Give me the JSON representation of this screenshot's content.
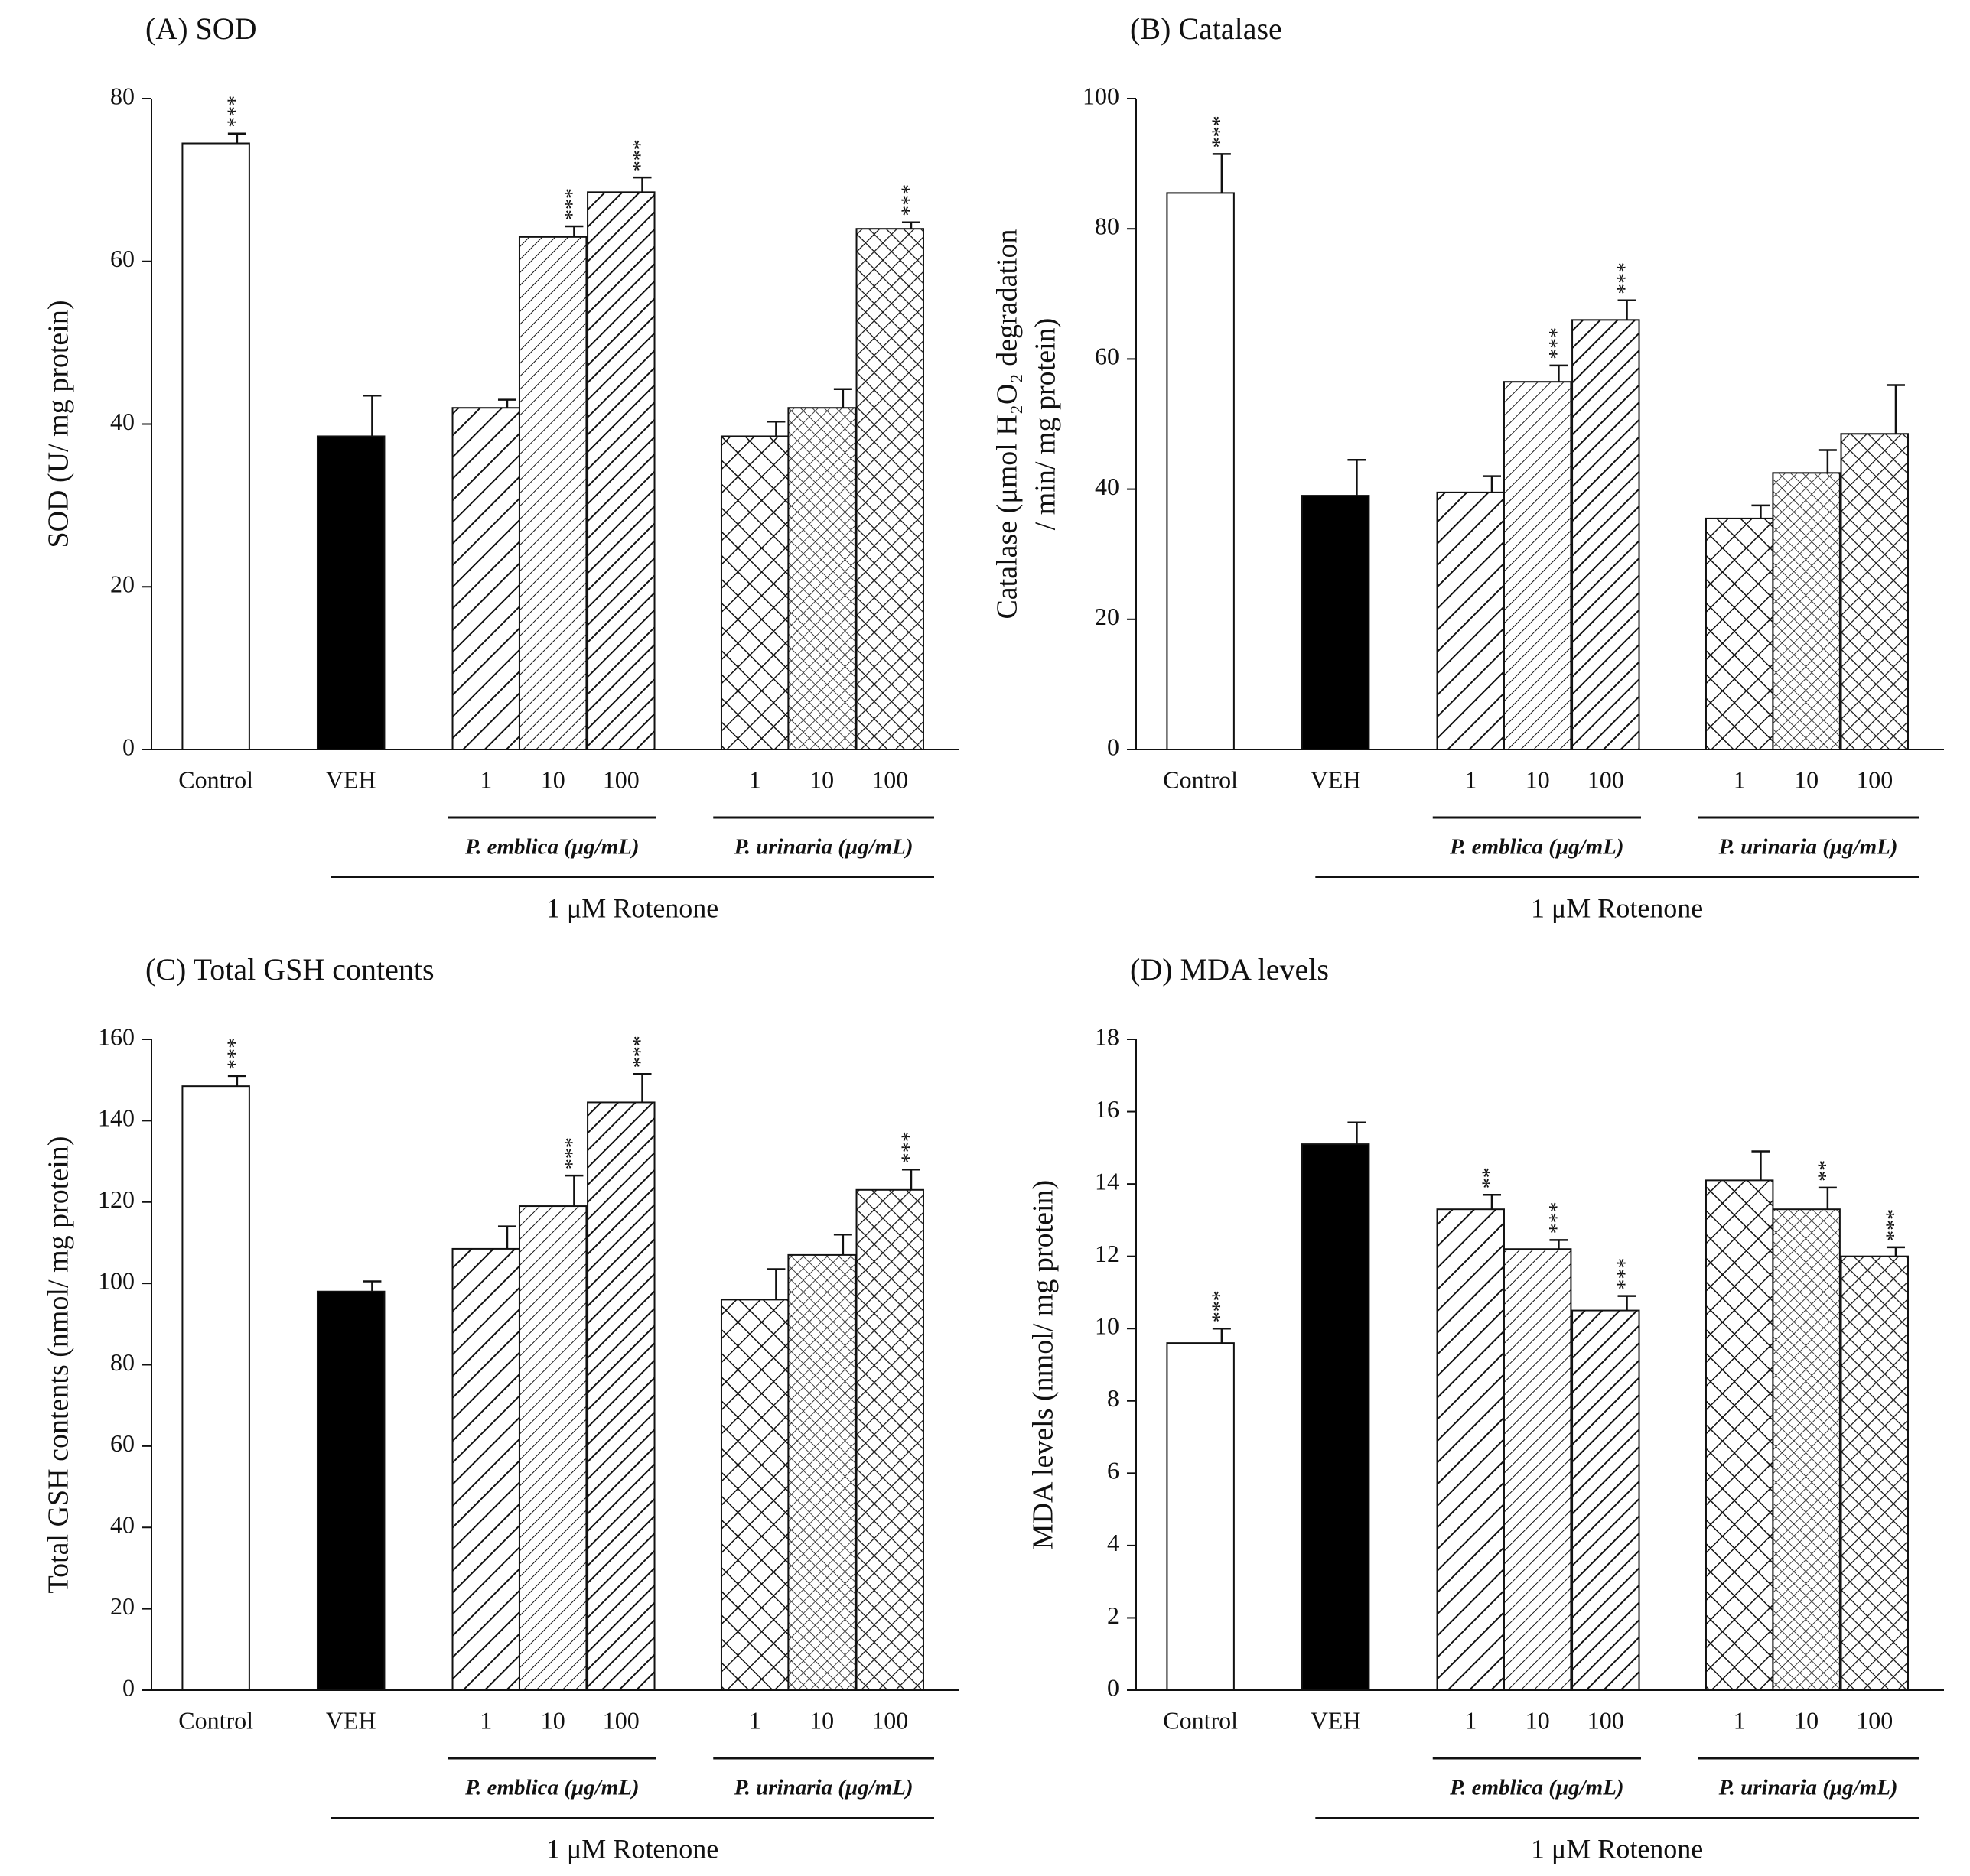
{
  "chart_data": [
    {
      "type": "bar",
      "title": "(A) SOD",
      "ylabel": [
        "SOD (U/ mg protein)"
      ],
      "categories": [
        "Control",
        "VEH",
        "1",
        "10",
        "100",
        "1",
        "10",
        "100"
      ],
      "values": [
        74.5,
        38.5,
        42,
        63,
        68.5,
        38.5,
        42,
        64
      ],
      "errors": [
        1.2,
        5,
        1,
        1.3,
        1.8,
        1.8,
        2.3,
        0.8
      ],
      "stars": [
        "***",
        null,
        null,
        "***",
        "***",
        null,
        null,
        "***"
      ],
      "patterns": [
        "white",
        "black",
        "hatch-a",
        "hatch-b",
        "hatch-c",
        "cross-a",
        "cross-b",
        "cross-c"
      ],
      "group_labels": [
        "P. emblica (μg/mL)",
        "P. urinaria (μg/mL)"
      ],
      "bracket_label": "1 μM Rotenone",
      "ylim": [
        0,
        80
      ],
      "yticks": [
        0,
        20,
        40,
        60,
        80
      ]
    },
    {
      "type": "bar",
      "title": "(B) Catalase",
      "ylabel": [
        "Catalase (μmol H₂O₂ degradation",
        "/ min/ mg protein)"
      ],
      "categories": [
        "Control",
        "VEH",
        "1",
        "10",
        "100",
        "1",
        "10",
        "100"
      ],
      "values": [
        85.5,
        39,
        39.5,
        56.5,
        66,
        35.5,
        42.5,
        48.5
      ],
      "errors": [
        6,
        5.5,
        2.5,
        2.5,
        3,
        2,
        3.5,
        7.5
      ],
      "stars": [
        "***",
        null,
        null,
        "***",
        "***",
        null,
        null,
        null
      ],
      "patterns": [
        "white",
        "black",
        "hatch-a",
        "hatch-b",
        "hatch-c",
        "cross-a",
        "cross-b",
        "cross-c"
      ],
      "group_labels": [
        "P. emblica (μg/mL)",
        "P. urinaria (μg/mL)"
      ],
      "bracket_label": "1 μM Rotenone",
      "ylim": [
        0,
        100
      ],
      "yticks": [
        0,
        20,
        40,
        60,
        80,
        100
      ]
    },
    {
      "type": "bar",
      "title": "(C) Total GSH contents",
      "ylabel": [
        "Total GSH contents (nmol/ mg protein)"
      ],
      "categories": [
        "Control",
        "VEH",
        "1",
        "10",
        "100",
        "1",
        "10",
        "100"
      ],
      "values": [
        148.5,
        98,
        108.5,
        119,
        144.5,
        96,
        107,
        123
      ],
      "errors": [
        2.5,
        2.5,
        5.5,
        7.5,
        7,
        7.5,
        5,
        5
      ],
      "stars": [
        "***",
        null,
        null,
        "***",
        "***",
        null,
        null,
        "***"
      ],
      "patterns": [
        "white",
        "black",
        "hatch-a",
        "hatch-b",
        "hatch-c",
        "cross-a",
        "cross-b",
        "cross-c"
      ],
      "group_labels": [
        "P. emblica (μg/mL)",
        "P. urinaria (μg/mL)"
      ],
      "bracket_label": "1 μM Rotenone",
      "ylim": [
        0,
        160
      ],
      "yticks": [
        0,
        20,
        40,
        60,
        80,
        100,
        120,
        140,
        160
      ]
    },
    {
      "type": "bar",
      "title": "(D) MDA levels",
      "ylabel": [
        "MDA levels (nmol/ mg protein)"
      ],
      "categories": [
        "Control",
        "VEH",
        "1",
        "10",
        "100",
        "1",
        "10",
        "100"
      ],
      "values": [
        9.6,
        15.1,
        13.3,
        12.2,
        10.5,
        14.1,
        13.3,
        12.0
      ],
      "errors": [
        0.4,
        0.6,
        0.4,
        0.25,
        0.4,
        0.8,
        0.6,
        0.25
      ],
      "stars": [
        "***",
        null,
        "**",
        "***",
        "***",
        null,
        "**",
        "***"
      ],
      "patterns": [
        "white",
        "black",
        "hatch-a",
        "hatch-b",
        "hatch-c",
        "cross-a",
        "cross-b",
        "cross-c"
      ],
      "group_labels": [
        "P. emblica (μg/mL)",
        "P. urinaria (μg/mL)"
      ],
      "bracket_label": "1 μM Rotenone",
      "ylim": [
        0,
        18
      ],
      "yticks": [
        0,
        2,
        4,
        6,
        8,
        10,
        12,
        14,
        16,
        18
      ]
    }
  ]
}
